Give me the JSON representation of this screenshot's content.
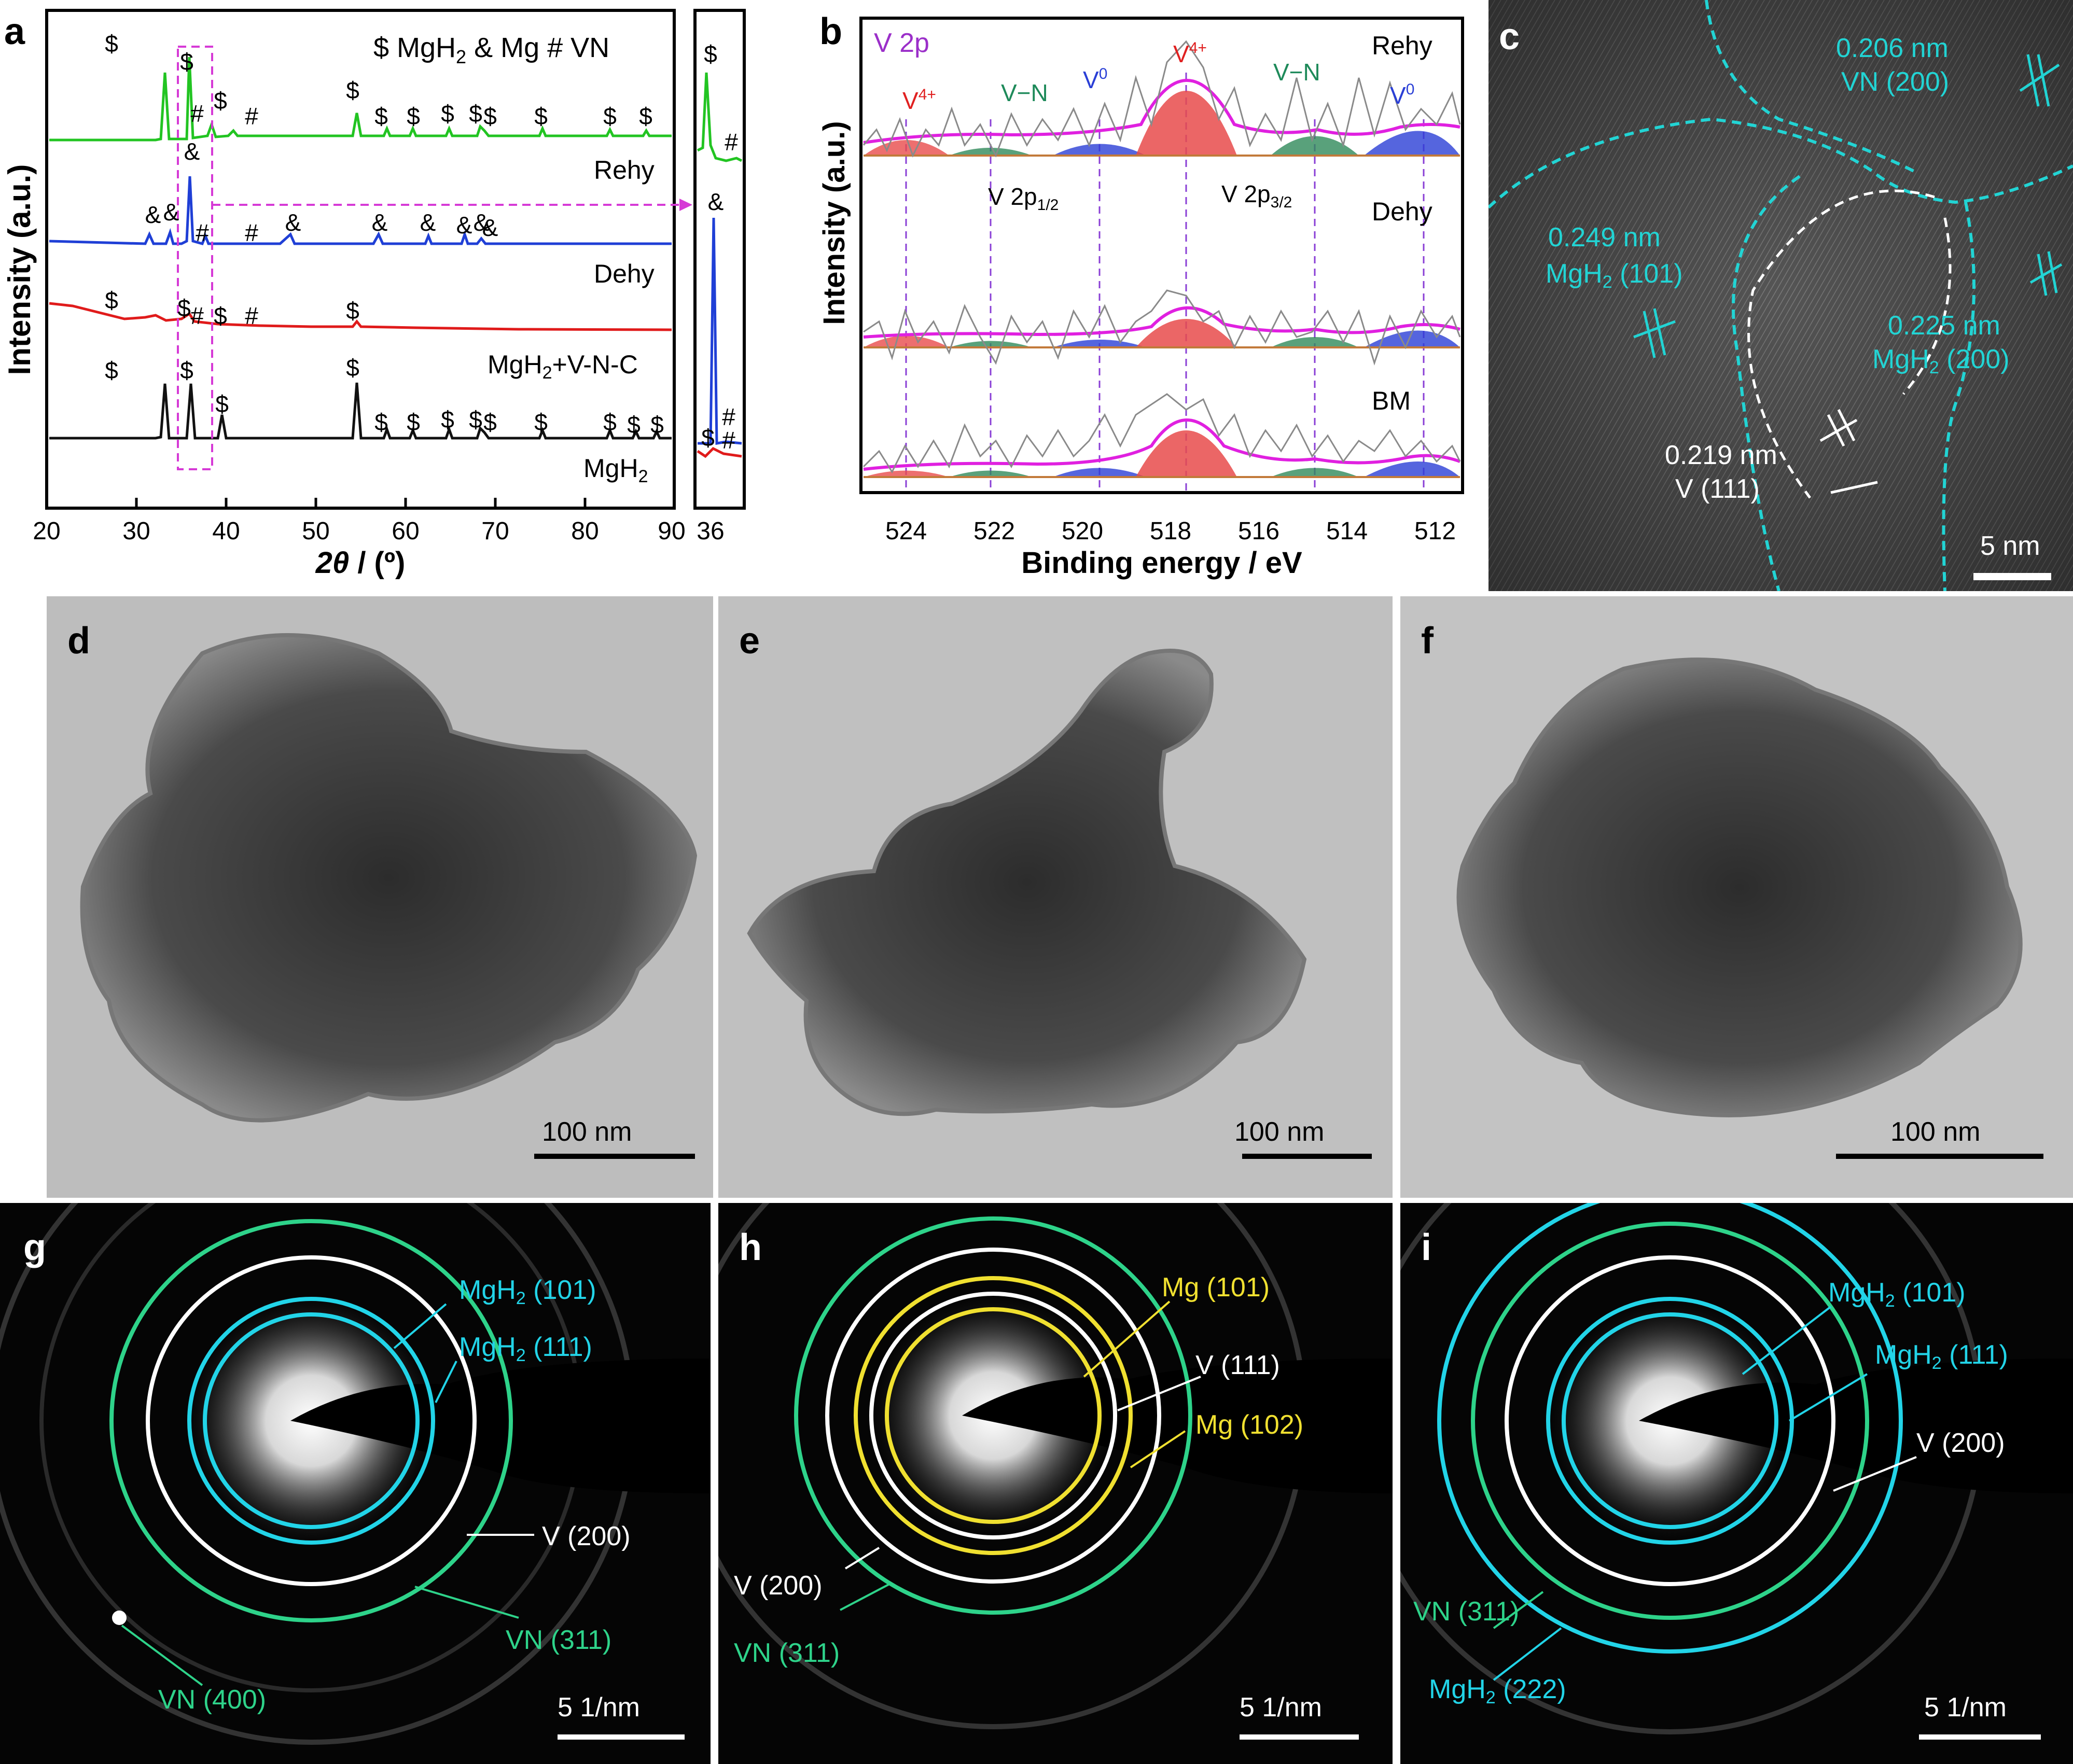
{
  "panels": {
    "a": {
      "label": "a",
      "legend": "$ MgH2   & Mg   # VN",
      "ylabel": "Intensity (a.u.)",
      "xlabel": "2θ / (º)",
      "xticks": [
        "20",
        "30",
        "40",
        "50",
        "60",
        "70",
        "80",
        "90"
      ],
      "inset_tick": "36",
      "traces": [
        "Rehy",
        "Dehy",
        "MgH2+V-N-C",
        "MgH2"
      ],
      "colors": {
        "Rehy": "#22c422",
        "Dehy": "#1f3fd6",
        "MgH2+V-N-C": "#e01b1b",
        "MgH2": "#111111",
        "highlight": "#d63ad6"
      }
    },
    "b": {
      "label": "b",
      "title": "V 2p",
      "ylabel": "Intensity (a.u.)",
      "xlabel": "Binding energy / eV",
      "xticks": [
        "524",
        "522",
        "520",
        "518",
        "516",
        "514",
        "512"
      ],
      "traces": [
        "Rehy",
        "Dehy",
        "BM"
      ],
      "peak_labels": [
        "V4+",
        "V−N",
        "V0",
        "V4+",
        "V−N",
        "V0"
      ],
      "orbitals": [
        "V 2p1/2",
        "V 2p3/2"
      ]
    },
    "c": {
      "label": "c",
      "annotations": [
        {
          "text1": "0.206 nm",
          "text2": "VN (200)"
        },
        {
          "text1": "0.249 nm",
          "text2": "MgH2 (101)"
        },
        {
          "text1": "0.225 nm",
          "text2": "MgH2 (200)"
        },
        {
          "text1": "0.219 nm",
          "text2": "V (111)"
        }
      ],
      "scale": "5 nm"
    },
    "d": {
      "label": "d",
      "scale": "100 nm"
    },
    "e": {
      "label": "e",
      "scale": "100 nm"
    },
    "f": {
      "label": "f",
      "scale": "100 nm"
    },
    "g": {
      "label": "g",
      "rings": [
        "MgH2 (101)",
        "MgH2 (111)",
        "V (200)",
        "VN (311)",
        "VN (400)"
      ],
      "scale": "5 1/nm"
    },
    "h": {
      "label": "h",
      "rings": [
        "Mg (101)",
        "V (111)",
        "Mg (102)",
        "V (200)",
        "VN (311)"
      ],
      "scale": "5 1/nm"
    },
    "i": {
      "label": "i",
      "rings": [
        "MgH2 (101)",
        "MgH2 (111)",
        "V (200)",
        "VN (311)",
        "MgH2 (222)"
      ],
      "scale": "5 1/nm"
    }
  }
}
